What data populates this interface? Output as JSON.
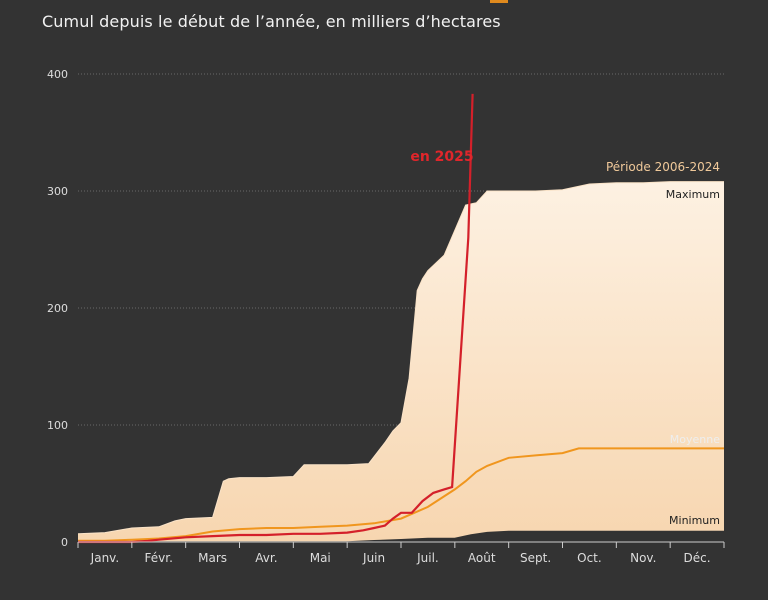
{
  "header": {
    "subtitle": "Cumul depuis le début de l’année, en milliers d’hectares"
  },
  "colors": {
    "background": "#333333",
    "band_fill": "#fbe3c6",
    "band_fill_light": "#fdf1e2",
    "average_line": "#f0961e",
    "year_line": "#d4202a",
    "gridline": "#6a6a6a"
  },
  "chart_data": {
    "type": "area",
    "title": "Cumul depuis le début de l’année, en milliers d’hectares",
    "xlabel": "",
    "ylabel": "",
    "xlim": [
      0,
      12
    ],
    "ylim": [
      0,
      400
    ],
    "yticks": [
      0,
      100,
      200,
      300,
      400
    ],
    "categories": [
      "Janv.",
      "Févr.",
      "Mars",
      "Avr.",
      "Mai",
      "Juin",
      "Juil.",
      "Août",
      "Sept.",
      "Oct.",
      "Nov.",
      "Déc."
    ],
    "period_label": "Période 2006-2024",
    "series": [
      {
        "name": "Maximum",
        "x": [
          0,
          0.5,
          1,
          1.5,
          1.8,
          2,
          2.5,
          2.7,
          2.8,
          3,
          3.5,
          4,
          4.2,
          4.5,
          5,
          5.4,
          5.7,
          5.85,
          6,
          6.15,
          6.3,
          6.4,
          6.5,
          6.8,
          7.2,
          7.4,
          7.6,
          8,
          8.5,
          9,
          9.5,
          10,
          10.5,
          11,
          12
        ],
        "values": [
          7,
          8,
          12,
          13,
          18,
          20,
          21,
          52,
          54,
          55,
          55,
          56,
          66,
          66,
          66,
          67,
          85,
          95,
          102,
          140,
          215,
          225,
          232,
          245,
          288,
          290,
          300,
          300,
          300,
          301,
          306,
          307,
          307,
          308,
          308
        ]
      },
      {
        "name": "Moyenne",
        "x": [
          0,
          0.5,
          1,
          1.5,
          2,
          2.5,
          3,
          3.5,
          4,
          4.5,
          5,
          5.5,
          6,
          6.5,
          7,
          7.2,
          7.4,
          7.6,
          8,
          8.5,
          9,
          9.3,
          9.5,
          10,
          10.5,
          11,
          12
        ],
        "values": [
          1,
          1,
          2,
          3,
          5,
          9,
          11,
          12,
          12,
          13,
          14,
          16,
          20,
          30,
          45,
          52,
          60,
          65,
          72,
          74,
          76,
          80,
          80,
          80,
          80,
          80,
          80
        ]
      },
      {
        "name": "Minimum",
        "x": [
          0,
          1,
          2,
          3,
          4,
          5,
          5.5,
          6,
          6.5,
          7,
          7.3,
          7.6,
          8,
          8.5,
          9,
          10,
          11,
          12
        ],
        "values": [
          0,
          0,
          0,
          0,
          0,
          0,
          1,
          2,
          3,
          3,
          6,
          8,
          9,
          9,
          9,
          9,
          9,
          9
        ]
      },
      {
        "name": "en 2025",
        "x": [
          0,
          0.5,
          1,
          1.3,
          1.5,
          2,
          2.5,
          3,
          3.5,
          4,
          4.5,
          5,
          5.3,
          5.5,
          5.7,
          5.85,
          6,
          6.2,
          6.4,
          6.6,
          6.8,
          6.95,
          7.25,
          7.33
        ],
        "values": [
          0,
          0,
          0,
          1,
          2,
          4,
          5,
          6,
          6,
          7,
          7,
          8,
          10,
          12,
          14,
          20,
          25,
          25,
          35,
          42,
          45,
          47,
          260,
          383
        ]
      }
    ]
  }
}
